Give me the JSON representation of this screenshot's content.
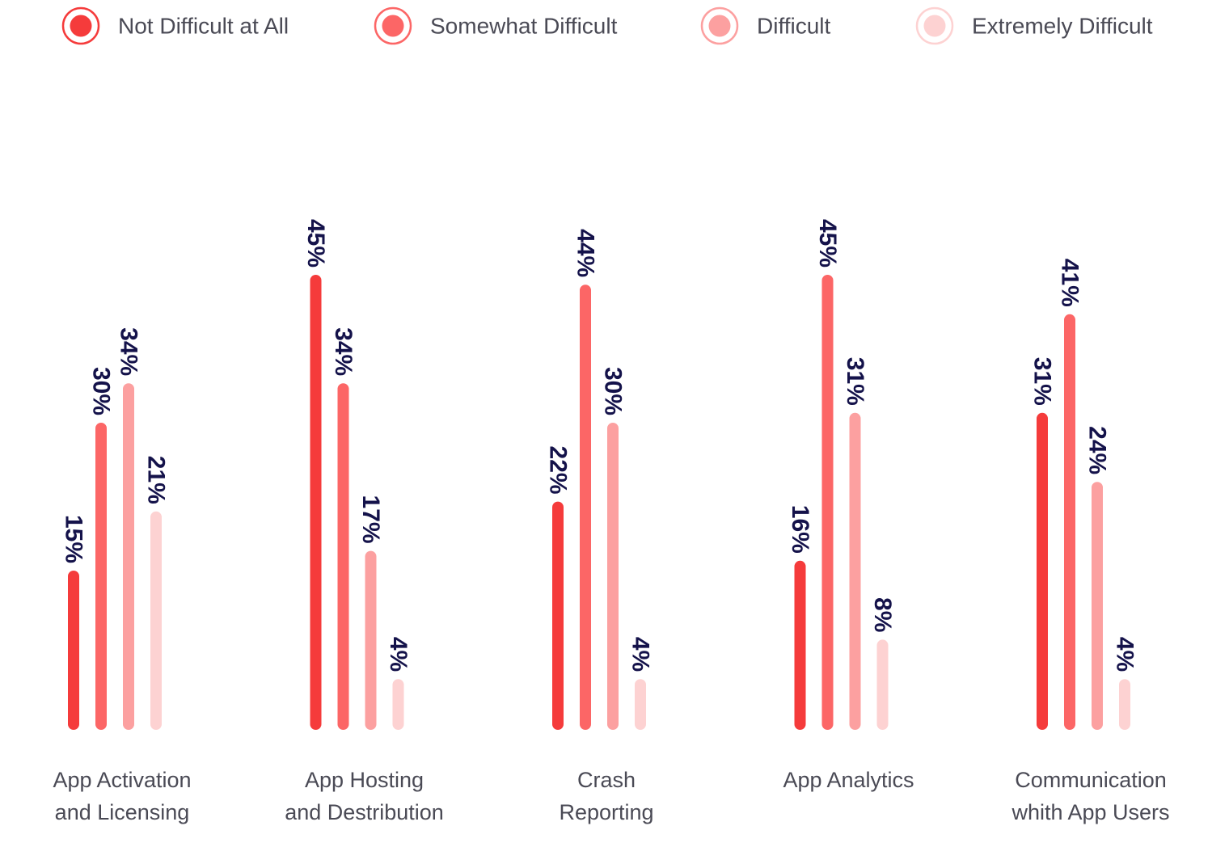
{
  "chart_data": {
    "type": "bar",
    "orientation": "vertical",
    "categories": [
      "App Activation and Licensing",
      "App Hosting and Destribution",
      "Crash Reporting",
      "App Analytics",
      "Communication whith App Users"
    ],
    "category_label_lines": [
      [
        "App Activation",
        "and Licensing"
      ],
      [
        "App Hosting",
        "and Destribution"
      ],
      [
        "Crash",
        "Reporting"
      ],
      [
        "App Analytics"
      ],
      [
        "Communication",
        "whith App Users"
      ]
    ],
    "series": [
      {
        "name": "Not Difficult at All",
        "color": "#f53b3b",
        "values": [
          15,
          45,
          22,
          16,
          31
        ]
      },
      {
        "name": "Somewhat Difficult",
        "color": "#fc6666",
        "values": [
          30,
          34,
          44,
          45,
          41
        ]
      },
      {
        "name": "Difficult",
        "color": "#fca0a0",
        "values": [
          34,
          17,
          30,
          31,
          24
        ]
      },
      {
        "name": "Extremely Difficult",
        "color": "#fdd2d2",
        "values": [
          21,
          4,
          4,
          8,
          4
        ]
      }
    ],
    "value_suffix": "%",
    "ylim": [
      0,
      45
    ],
    "grid": false,
    "legend_position": "top",
    "data_label_color": "#14124a",
    "category_label_color": "#4a4a55",
    "legend_text_color": "#4a4a55",
    "title": "",
    "xlabel": "",
    "ylabel": ""
  }
}
